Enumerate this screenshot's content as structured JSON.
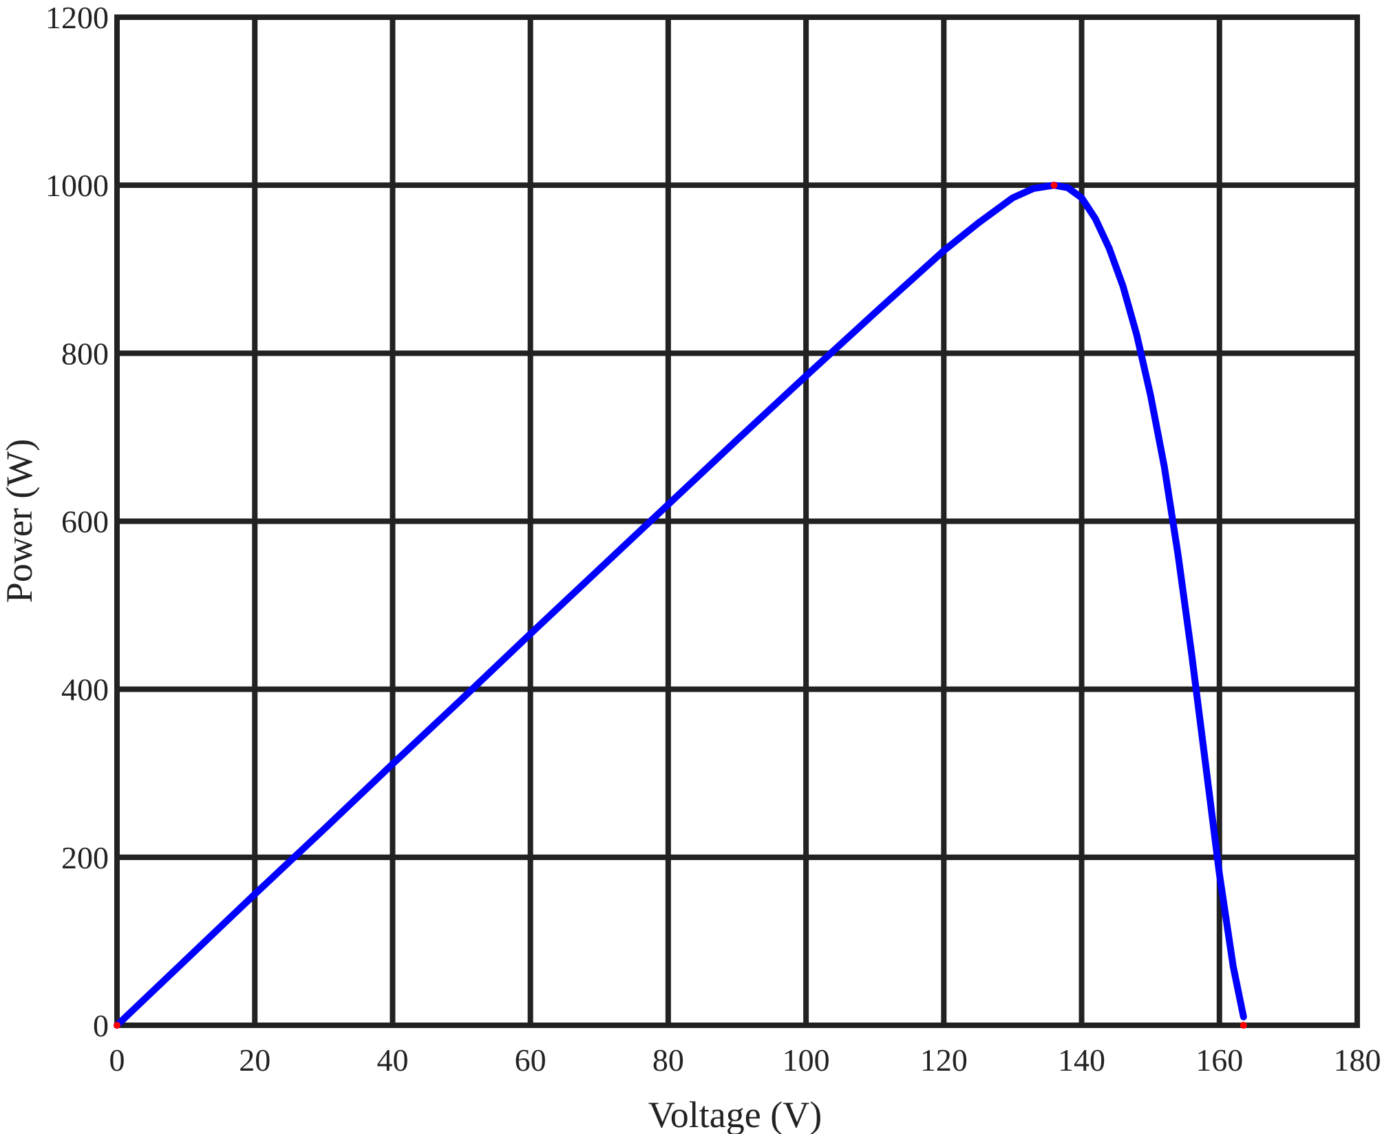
{
  "chart_data": {
    "type": "line",
    "title": "",
    "xlabel": "Voltage (V)",
    "ylabel": "Power (W)",
    "xlim": [
      0,
      180
    ],
    "ylim": [
      0,
      1200
    ],
    "xticks": [
      0,
      20,
      40,
      60,
      80,
      100,
      120,
      140,
      160,
      180
    ],
    "yticks": [
      0,
      200,
      400,
      600,
      800,
      1000,
      1200
    ],
    "grid": true,
    "legend": "none",
    "series": [
      {
        "color": "#0000ff",
        "x": [
          0,
          10,
          20,
          30,
          40,
          50,
          60,
          70,
          80,
          90,
          100,
          110,
          120,
          125,
          130,
          133,
          136,
          138,
          140,
          142,
          144,
          146,
          148,
          150,
          152,
          154,
          156,
          158,
          160,
          162,
          163.5
        ],
        "y": [
          0,
          78,
          156,
          233,
          311,
          388,
          466,
          543,
          620,
          697,
          773,
          848,
          922,
          955,
          985,
          996,
          1000,
          997,
          985,
          960,
          925,
          880,
          822,
          750,
          665,
          560,
          440,
          310,
          180,
          70,
          10
        ]
      }
    ],
    "markers": [
      {
        "x": 0,
        "y": 0,
        "color": "#ff0000"
      },
      {
        "x": 136,
        "y": 1000,
        "color": "#ff0000"
      },
      {
        "x": 163.5,
        "y": 0,
        "color": "#ff0000"
      }
    ],
    "colors": {
      "grid": "#222222",
      "axes": "#222222",
      "background": "#ffffff"
    }
  }
}
